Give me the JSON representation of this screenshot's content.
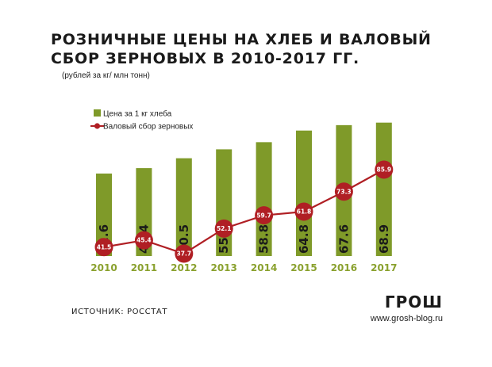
{
  "title": "РОЗНИЧНЫЕ ЦЕНЫ НА ХЛЕБ И ВАЛОВЫЙ СБОР ЗЕРНОВЫХ В 2010-2017 ГГ.",
  "subtitle": "(рублей за кг/ млн тонн)",
  "footer": {
    "source": "ИСТОЧНИК: РОССТАТ",
    "brand": "ГРОШ",
    "site": "www.grosh-blog.ru"
  },
  "colors": {
    "bar": "#7f9a29",
    "line": "#b01f24",
    "year_label": "#8aa12e"
  },
  "chart_data": {
    "type": "bar",
    "categories": [
      "2010",
      "2011",
      "2012",
      "2013",
      "2014",
      "2015",
      "2016",
      "2017"
    ],
    "series": [
      {
        "name": "Цена за 1 кг хлеба",
        "type": "bar",
        "values": [
          42.6,
          45.4,
          50.5,
          55.1,
          58.8,
          64.8,
          67.6,
          68.9
        ]
      },
      {
        "name": "Валовый сбор зерновых",
        "type": "line",
        "values": [
          41.5,
          45.4,
          37.7,
          52.1,
          59.7,
          61.8,
          73.3,
          85.9
        ]
      }
    ],
    "ylim": [
      0,
      100
    ],
    "grid": false,
    "legend_position": "top-left"
  }
}
